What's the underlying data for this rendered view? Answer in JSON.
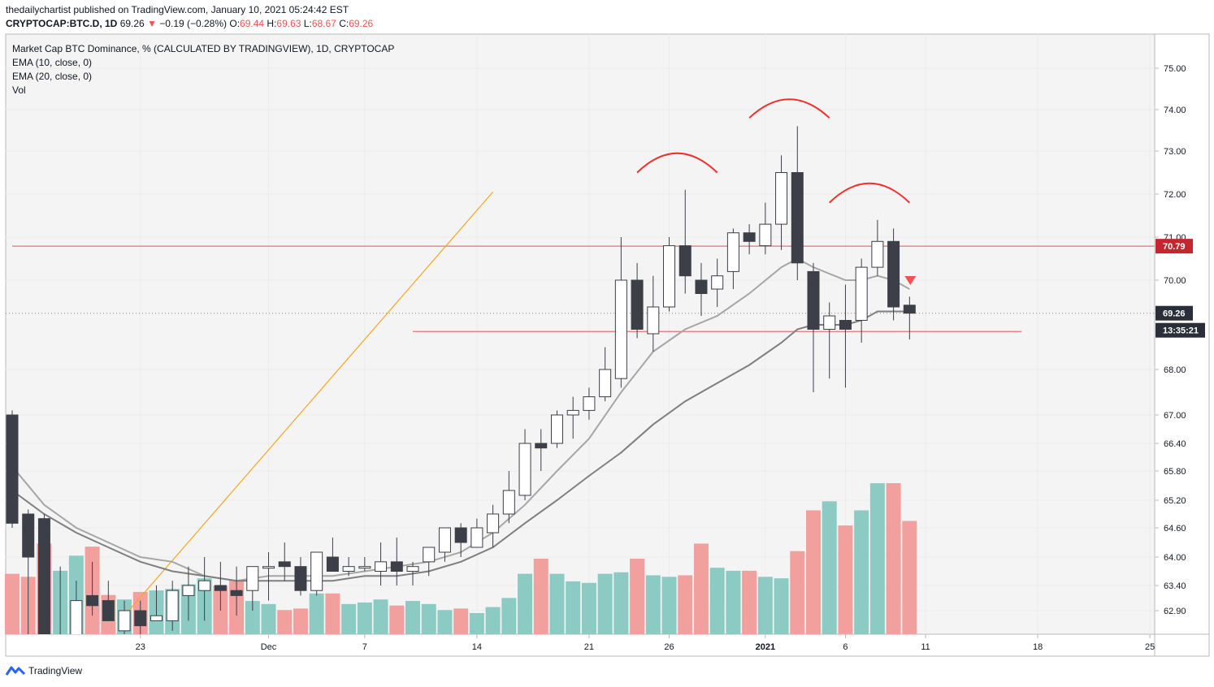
{
  "header": {
    "publisher": "thedailychartist published on TradingView.com, January 10, 2021 05:24:42 EST",
    "symbol": "CRYPTOCAP:BTC.D, 1D",
    "last": "69.26",
    "change": "−0.19 (−0.28%)",
    "o_label": "O:",
    "o": "69.44",
    "h_label": "H:",
    "h": "69.63",
    "l_label": "L:",
    "l": "68.67",
    "c_label": "C:",
    "c": "69.26"
  },
  "legend": {
    "title": "Market Cap BTC Dominance, % (CALCULATED BY TRADINGVIEW), 1D, CRYPTOCAP",
    "ema10": "EMA (10, close, 0)",
    "ema20": "EMA (20, close, 0)",
    "vol": "Vol"
  },
  "footer": {
    "brand": "TradingView"
  },
  "colors": {
    "up_vol": "#8ccbc4",
    "down_vol": "#f2a09e",
    "candle_down": "#3c3e48",
    "candle_up": "#ffffff",
    "ema10": "#a6a6a6",
    "ema20": "#7f7f7f",
    "hline": "#e57373",
    "arc": "#f0302a",
    "trend": "#f5a623",
    "tag_red": "#c4262d",
    "tag_dark": "#2a2e39"
  },
  "chart_data": {
    "type": "candlestick",
    "y_ticks": [
      "75.00",
      "74.00",
      "73.00",
      "72.00",
      "71.00",
      "70.00",
      "68.00",
      "67.00",
      "66.40",
      "65.80",
      "65.20",
      "64.60",
      "64.00",
      "63.40",
      "62.90"
    ],
    "x_ticks": [
      {
        "label": "23",
        "day": 23
      },
      {
        "label": "Dec",
        "day": 31
      },
      {
        "label": "7",
        "day": 37
      },
      {
        "label": "14",
        "day": 44
      },
      {
        "label": "21",
        "day": 51
      },
      {
        "label": "26",
        "day": 56
      },
      {
        "label": "2021",
        "day": 62
      },
      {
        "label": "6",
        "day": 67
      },
      {
        "label": "11",
        "day": 72
      },
      {
        "label": "18",
        "day": 79
      },
      {
        "label": "25",
        "day": 86
      }
    ],
    "price_tags": [
      {
        "label": "70.79",
        "value": 70.79,
        "kind": "red"
      },
      {
        "label": "69.26",
        "value": 69.26,
        "kind": "dark"
      },
      {
        "label": "13:35:21",
        "value": 68.9,
        "kind": "dark"
      }
    ],
    "horizontal_lines": [
      {
        "value": 70.79,
        "from_day": 15,
        "to_day": 90
      },
      {
        "value": 68.85,
        "from_day": 40,
        "to_day": 78
      }
    ],
    "trend_line": {
      "from": {
        "day": 22,
        "value": 62.8
      },
      "to": {
        "day": 45,
        "value": 72.05
      }
    },
    "candles": [
      {
        "day": 15,
        "o": 67.0,
        "h": 67.1,
        "l": 64.6,
        "c": 64.7,
        "vol": 0.4,
        "dir": "down"
      },
      {
        "day": 16,
        "o": 64.9,
        "h": 65.0,
        "l": 62.0,
        "c": 64.0,
        "vol": 0.38,
        "dir": "down"
      },
      {
        "day": 17,
        "o": 64.8,
        "h": 64.9,
        "l": 61.0,
        "c": 62.2,
        "vol": 0.6,
        "dir": "down"
      },
      {
        "day": 18,
        "o": 62.0,
        "h": 63.8,
        "l": 61.9,
        "c": 62.3,
        "vol": 0.42,
        "dir": "up"
      },
      {
        "day": 19,
        "o": 62.4,
        "h": 63.5,
        "l": 62.0,
        "c": 63.1,
        "vol": 0.52,
        "dir": "up"
      },
      {
        "day": 20,
        "o": 63.2,
        "h": 63.9,
        "l": 62.8,
        "c": 63.0,
        "vol": 0.58,
        "dir": "down"
      },
      {
        "day": 21,
        "o": 63.1,
        "h": 63.5,
        "l": 62.7,
        "c": 62.7,
        "vol": 0.26,
        "dir": "down"
      },
      {
        "day": 22,
        "o": 62.5,
        "h": 63.1,
        "l": 62.2,
        "c": 62.9,
        "vol": 0.23,
        "dir": "up"
      },
      {
        "day": 23,
        "o": 62.9,
        "h": 63.1,
        "l": 62.3,
        "c": 62.6,
        "vol": 0.28,
        "dir": "down"
      },
      {
        "day": 24,
        "o": 62.8,
        "h": 63.4,
        "l": 62.7,
        "c": 62.7,
        "vol": 0.29,
        "dir": "up"
      },
      {
        "day": 25,
        "o": 62.7,
        "h": 63.5,
        "l": 62.5,
        "c": 63.3,
        "vol": 0.3,
        "dir": "up"
      },
      {
        "day": 26,
        "o": 63.4,
        "h": 63.8,
        "l": 62.7,
        "c": 63.2,
        "vol": 0.33,
        "dir": "up"
      },
      {
        "day": 27,
        "o": 63.5,
        "h": 64.0,
        "l": 62.7,
        "c": 63.3,
        "vol": 0.37,
        "dir": "up"
      },
      {
        "day": 28,
        "o": 63.4,
        "h": 63.9,
        "l": 62.9,
        "c": 63.3,
        "vol": 0.32,
        "dir": "down"
      },
      {
        "day": 29,
        "o": 63.3,
        "h": 63.8,
        "l": 62.8,
        "c": 63.2,
        "vol": 0.36,
        "dir": "down"
      },
      {
        "day": 30,
        "o": 63.3,
        "h": 63.8,
        "l": 62.9,
        "c": 63.8,
        "vol": 0.22,
        "dir": "up"
      },
      {
        "day": 31,
        "o": 63.8,
        "h": 64.1,
        "l": 63.1,
        "c": 63.8,
        "vol": 0.2,
        "dir": "up"
      },
      {
        "day": 32,
        "o": 63.9,
        "h": 64.3,
        "l": 63.5,
        "c": 63.8,
        "vol": 0.16,
        "dir": "down"
      },
      {
        "day": 33,
        "o": 63.8,
        "h": 64.0,
        "l": 63.2,
        "c": 63.3,
        "vol": 0.17,
        "dir": "down"
      },
      {
        "day": 34,
        "o": 63.3,
        "h": 64.0,
        "l": 63.2,
        "c": 64.1,
        "vol": 0.27,
        "dir": "up"
      },
      {
        "day": 35,
        "o": 64.0,
        "h": 64.4,
        "l": 63.8,
        "c": 63.7,
        "vol": 0.27,
        "dir": "down"
      },
      {
        "day": 36,
        "o": 63.7,
        "h": 64.0,
        "l": 63.6,
        "c": 63.8,
        "vol": 0.2,
        "dir": "up"
      },
      {
        "day": 37,
        "o": 63.8,
        "h": 64.0,
        "l": 63.7,
        "c": 63.8,
        "vol": 0.21,
        "dir": "up"
      },
      {
        "day": 38,
        "o": 63.7,
        "h": 64.3,
        "l": 63.4,
        "c": 63.9,
        "vol": 0.23,
        "dir": "up"
      },
      {
        "day": 39,
        "o": 63.9,
        "h": 64.4,
        "l": 63.4,
        "c": 63.7,
        "vol": 0.19,
        "dir": "down"
      },
      {
        "day": 40,
        "o": 63.7,
        "h": 63.9,
        "l": 63.4,
        "c": 63.8,
        "vol": 0.22,
        "dir": "up"
      },
      {
        "day": 41,
        "o": 63.9,
        "h": 64.2,
        "l": 63.6,
        "c": 64.2,
        "vol": 0.2,
        "dir": "up"
      },
      {
        "day": 42,
        "o": 64.1,
        "h": 64.6,
        "l": 63.9,
        "c": 64.6,
        "vol": 0.16,
        "dir": "up"
      },
      {
        "day": 43,
        "o": 64.6,
        "h": 64.7,
        "l": 64.0,
        "c": 64.3,
        "vol": 0.17,
        "dir": "down"
      },
      {
        "day": 44,
        "o": 64.2,
        "h": 64.8,
        "l": 64.2,
        "c": 64.6,
        "vol": 0.14,
        "dir": "up"
      },
      {
        "day": 45,
        "o": 64.5,
        "h": 65.1,
        "l": 64.2,
        "c": 64.9,
        "vol": 0.18,
        "dir": "up"
      },
      {
        "day": 46,
        "o": 64.9,
        "h": 65.8,
        "l": 64.7,
        "c": 65.4,
        "vol": 0.24,
        "dir": "up"
      },
      {
        "day": 47,
        "o": 65.3,
        "h": 66.7,
        "l": 65.2,
        "c": 66.4,
        "vol": 0.4,
        "dir": "up"
      },
      {
        "day": 48,
        "o": 66.4,
        "h": 66.7,
        "l": 65.8,
        "c": 66.3,
        "vol": 0.5,
        "dir": "down"
      },
      {
        "day": 49,
        "o": 66.4,
        "h": 67.1,
        "l": 66.3,
        "c": 67.0,
        "vol": 0.4,
        "dir": "up"
      },
      {
        "day": 50,
        "o": 67.0,
        "h": 67.4,
        "l": 66.5,
        "c": 67.1,
        "vol": 0.35,
        "dir": "up"
      },
      {
        "day": 51,
        "o": 67.1,
        "h": 67.6,
        "l": 66.9,
        "c": 67.4,
        "vol": 0.34,
        "dir": "up"
      },
      {
        "day": 52,
        "o": 67.4,
        "h": 68.5,
        "l": 67.3,
        "c": 68.0,
        "vol": 0.4,
        "dir": "up"
      },
      {
        "day": 53,
        "o": 67.8,
        "h": 71.0,
        "l": 67.6,
        "c": 70.0,
        "vol": 0.41,
        "dir": "up"
      },
      {
        "day": 54,
        "o": 70.0,
        "h": 70.4,
        "l": 68.7,
        "c": 68.9,
        "vol": 0.5,
        "dir": "down"
      },
      {
        "day": 55,
        "o": 68.8,
        "h": 70.1,
        "l": 68.4,
        "c": 69.4,
        "vol": 0.39,
        "dir": "up"
      },
      {
        "day": 56,
        "o": 69.4,
        "h": 71.0,
        "l": 69.3,
        "c": 70.8,
        "vol": 0.38,
        "dir": "up"
      },
      {
        "day": 57,
        "o": 70.8,
        "h": 72.1,
        "l": 69.7,
        "c": 70.1,
        "vol": 0.39,
        "dir": "down"
      },
      {
        "day": 58,
        "o": 70.0,
        "h": 70.4,
        "l": 69.2,
        "c": 69.7,
        "vol": 0.6,
        "dir": "down"
      },
      {
        "day": 59,
        "o": 69.8,
        "h": 70.5,
        "l": 69.4,
        "c": 70.1,
        "vol": 0.44,
        "dir": "up"
      },
      {
        "day": 60,
        "o": 70.2,
        "h": 71.2,
        "l": 69.8,
        "c": 71.1,
        "vol": 0.42,
        "dir": "up"
      },
      {
        "day": 61,
        "o": 71.1,
        "h": 71.3,
        "l": 70.6,
        "c": 70.9,
        "vol": 0.42,
        "dir": "down"
      },
      {
        "day": 62,
        "o": 70.8,
        "h": 71.8,
        "l": 70.6,
        "c": 71.3,
        "vol": 0.38,
        "dir": "up"
      },
      {
        "day": 63,
        "o": 71.3,
        "h": 72.9,
        "l": 70.7,
        "c": 72.5,
        "vol": 0.37,
        "dir": "up"
      },
      {
        "day": 64,
        "o": 72.5,
        "h": 73.6,
        "l": 70.0,
        "c": 70.4,
        "vol": 0.55,
        "dir": "down"
      },
      {
        "day": 65,
        "o": 70.2,
        "h": 70.4,
        "l": 67.5,
        "c": 68.9,
        "vol": 0.82,
        "dir": "down"
      },
      {
        "day": 66,
        "o": 68.9,
        "h": 69.5,
        "l": 67.8,
        "c": 69.2,
        "vol": 0.88,
        "dir": "up"
      },
      {
        "day": 67,
        "o": 69.1,
        "h": 69.9,
        "l": 67.6,
        "c": 68.9,
        "vol": 0.72,
        "dir": "down"
      },
      {
        "day": 68,
        "o": 69.1,
        "h": 70.5,
        "l": 68.6,
        "c": 70.3,
        "vol": 0.82,
        "dir": "up"
      },
      {
        "day": 69,
        "o": 70.3,
        "h": 71.4,
        "l": 70.1,
        "c": 70.9,
        "vol": 1.0,
        "dir": "up"
      },
      {
        "day": 70,
        "o": 70.9,
        "h": 71.2,
        "l": 69.1,
        "c": 69.4,
        "vol": 1.0,
        "dir": "down"
      },
      {
        "day": 71,
        "o": 69.44,
        "h": 69.63,
        "l": 68.67,
        "c": 69.26,
        "vol": 0.75,
        "dir": "down"
      }
    ],
    "ema10": [
      [
        15,
        65.9
      ],
      [
        17,
        65.1
      ],
      [
        19,
        64.6
      ],
      [
        21,
        64.3
      ],
      [
        23,
        64.0
      ],
      [
        25,
        63.9
      ],
      [
        27,
        63.6
      ],
      [
        29,
        63.5
      ],
      [
        31,
        63.6
      ],
      [
        33,
        63.6
      ],
      [
        35,
        63.6
      ],
      [
        37,
        63.7
      ],
      [
        39,
        63.8
      ],
      [
        41,
        63.9
      ],
      [
        43,
        64.1
      ],
      [
        45,
        64.5
      ],
      [
        47,
        65.1
      ],
      [
        49,
        65.8
      ],
      [
        51,
        66.5
      ],
      [
        53,
        67.5
      ],
      [
        55,
        68.4
      ],
      [
        57,
        68.9
      ],
      [
        59,
        69.2
      ],
      [
        61,
        69.7
      ],
      [
        63,
        70.3
      ],
      [
        64,
        70.5
      ],
      [
        65,
        70.3
      ],
      [
        67,
        70.0
      ],
      [
        68,
        70.0
      ],
      [
        69,
        70.1
      ],
      [
        70,
        70.0
      ],
      [
        71,
        69.8
      ]
    ],
    "ema20": [
      [
        15,
        65.4
      ],
      [
        17,
        64.9
      ],
      [
        19,
        64.5
      ],
      [
        21,
        64.2
      ],
      [
        23,
        63.9
      ],
      [
        25,
        63.7
      ],
      [
        27,
        63.6
      ],
      [
        29,
        63.5
      ],
      [
        31,
        63.5
      ],
      [
        33,
        63.5
      ],
      [
        35,
        63.5
      ],
      [
        37,
        63.6
      ],
      [
        39,
        63.6
      ],
      [
        41,
        63.7
      ],
      [
        43,
        63.9
      ],
      [
        45,
        64.2
      ],
      [
        47,
        64.7
      ],
      [
        49,
        65.2
      ],
      [
        51,
        65.7
      ],
      [
        53,
        66.2
      ],
      [
        55,
        66.8
      ],
      [
        57,
        67.3
      ],
      [
        59,
        67.7
      ],
      [
        61,
        68.1
      ],
      [
        63,
        68.6
      ],
      [
        64,
        68.9
      ],
      [
        65,
        69.0
      ],
      [
        67,
        69.0
      ],
      [
        68,
        69.1
      ],
      [
        69,
        69.3
      ],
      [
        70,
        69.3
      ],
      [
        71,
        69.3
      ]
    ],
    "arcs": [
      {
        "from": {
          "day": 54,
          "value": 72.5
        },
        "to": {
          "day": 59,
          "value": 72.5
        },
        "peak": 72.95
      },
      {
        "from": {
          "day": 61,
          "value": 73.8
        },
        "to": {
          "day": 66,
          "value": 73.8
        },
        "peak": 74.25
      },
      {
        "from": {
          "day": 66,
          "value": 71.8
        },
        "to": {
          "day": 71,
          "value": 71.8
        },
        "peak": 72.25
      }
    ]
  }
}
